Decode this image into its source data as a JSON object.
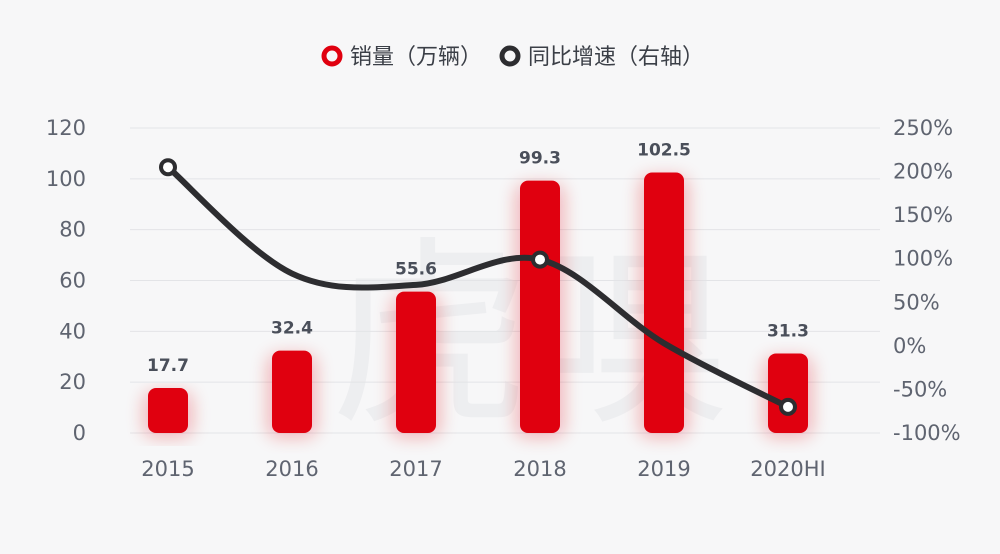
{
  "chart_data": {
    "type": "bar",
    "categories": [
      "2015",
      "2016",
      "2017",
      "2018",
      "2019",
      "2020HI"
    ],
    "series": [
      {
        "name": "销量（万辆）",
        "type": "bar",
        "axis": "left",
        "values": [
          17.7,
          32.4,
          55.6,
          99.3,
          102.5,
          31.3
        ],
        "data_labels": [
          "17.7",
          "32.4",
          "55.6",
          "99.3",
          "102.5",
          "31.3"
        ]
      },
      {
        "name": "同比增速（右轴）",
        "type": "line",
        "axis": "right",
        "values": [
          205,
          83,
          70,
          99,
          3,
          -70
        ],
        "smooth": true
      }
    ],
    "left_axis": {
      "ylim": [
        0,
        120
      ],
      "ticks": [
        "0",
        "20",
        "40",
        "60",
        "80",
        "100",
        "120"
      ]
    },
    "right_axis": {
      "ylim": [
        -100,
        250
      ],
      "ticks": [
        "-100%",
        "-50%",
        "0%",
        "50%",
        "100%",
        "150%",
        "200%",
        "250%"
      ]
    },
    "marker_points": [
      0,
      3,
      5
    ],
    "grid": true,
    "legend": "top-center",
    "colors": {
      "bar": "#e0000f",
      "line": "#2d2d30",
      "grid": "#e3e4e7"
    },
    "watermark": "虎嗅"
  }
}
